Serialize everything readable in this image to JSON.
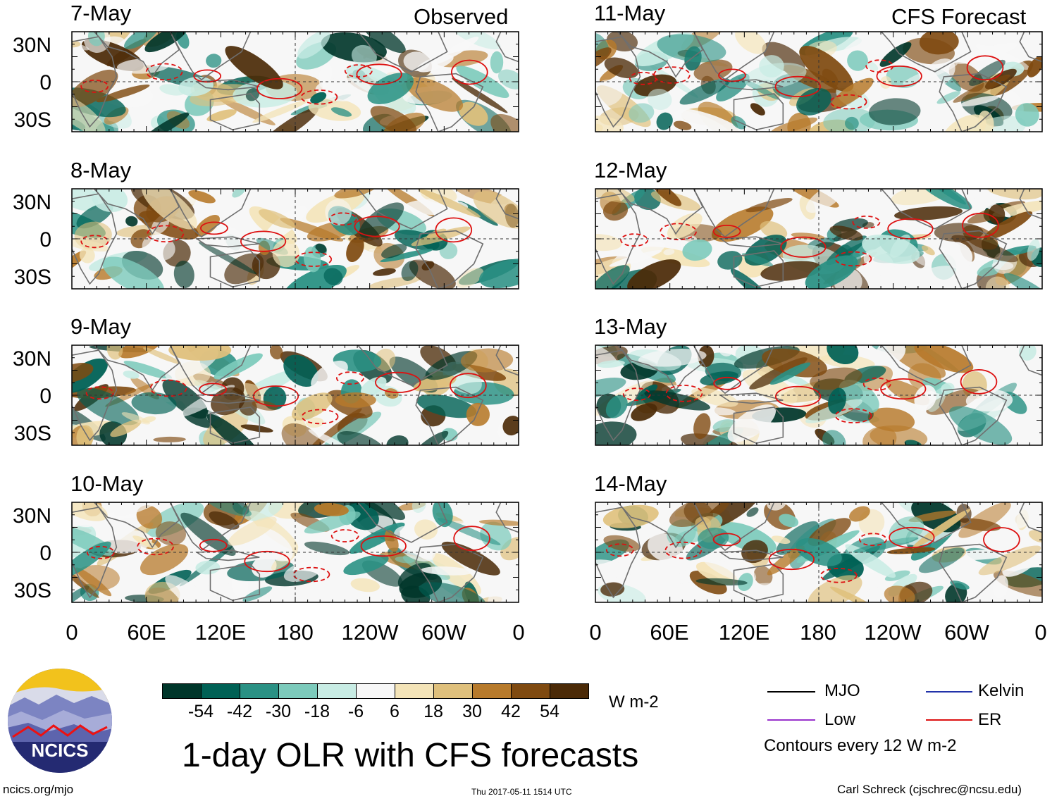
{
  "title": "1-day OLR with CFS forecasts",
  "observed_label": "Observed",
  "forecast_label": "CFS Forecast",
  "panels_left": [
    {
      "date": "7-May"
    },
    {
      "date": "8-May"
    },
    {
      "date": "9-May"
    },
    {
      "date": "10-May"
    }
  ],
  "panels_right": [
    {
      "date": "11-May"
    },
    {
      "date": "12-May"
    },
    {
      "date": "13-May"
    },
    {
      "date": "14-May"
    }
  ],
  "lat_labels": [
    "30N",
    "0",
    "30S"
  ],
  "lon_labels": [
    "0",
    "60E",
    "120E",
    "180",
    "120W",
    "60W",
    "0"
  ],
  "colorbar": {
    "values": [
      "-54",
      "-42",
      "-30",
      "-18",
      "-6",
      "6",
      "18",
      "30",
      "42",
      "54"
    ],
    "colors": [
      "#00362a",
      "#006155",
      "#2a9184",
      "#7ccabb",
      "#c8ece4",
      "#f7f7f7",
      "#f4e4b8",
      "#dfc07c",
      "#b77a2b",
      "#7f4a10",
      "#4b2a07"
    ],
    "units": "W m-2"
  },
  "legend": {
    "mjo": "MJO",
    "kelvin": "Kelvin",
    "low": "Low",
    "er": "ER",
    "mjo_color": "#000000",
    "kelvin_color": "#2233aa",
    "low_color": "#9933cc",
    "er_color": "#dd1111",
    "contours_note": "Contours every 12 W m-2"
  },
  "logo_text": "NCICS",
  "footer": {
    "url": "ncics.org/mjo",
    "timestamp": "Thu 2017-05-11 1514 UTC",
    "author": "Carl Schreck (cjschrec@ncsu.edu)"
  }
}
